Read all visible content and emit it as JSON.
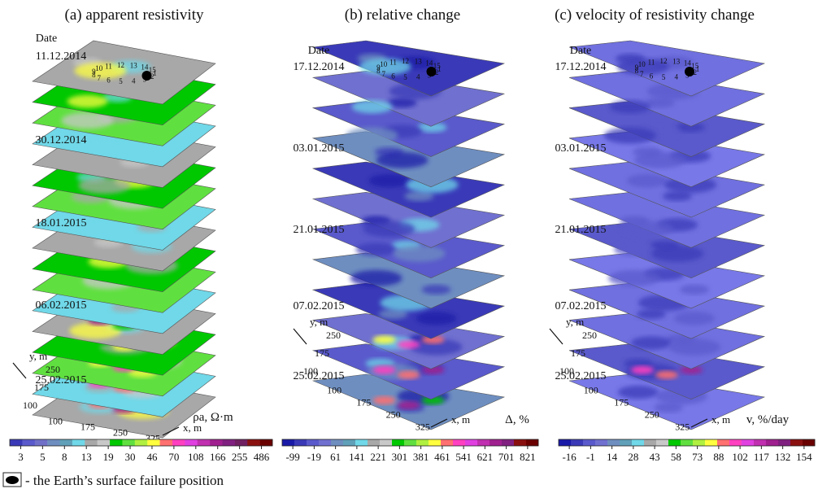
{
  "chart_data": [
    {
      "type": "heatmap",
      "title": "(a) apparent resistivity",
      "date_header": "Date",
      "dates": [
        "11.12.2014",
        "30.12.2014",
        "18.01.2015",
        "06.02.2015",
        "25.02.2015"
      ],
      "x_axis": {
        "label": "x, m",
        "ticks": [
          100,
          175,
          250,
          325
        ]
      },
      "y_axis": {
        "label": "y, m",
        "ticks": [
          100,
          175,
          250
        ]
      },
      "electrode_labels": [
        "1",
        "2",
        "3",
        "4",
        "5",
        "6",
        "7",
        "8",
        "9",
        "10",
        "11",
        "12",
        "13",
        "14",
        "15"
      ],
      "slice_count": 17,
      "colorbar": {
        "unit": "ρa, Ω·m",
        "ticks": [
          "3",
          "5",
          "8",
          "13",
          "19",
          "30",
          "46",
          "70",
          "108",
          "166",
          "255",
          "486"
        ],
        "colors": [
          "#3a3ab8",
          "#5a5acc",
          "#7070c8",
          "#6e8ec0",
          "#60a0b8",
          "#70d8e8",
          "#a8a8a8",
          "#c8c8c8",
          "#00c800",
          "#60e040",
          "#b0f040",
          "#ffff40",
          "#ff7070",
          "#ff40c0",
          "#e040e0",
          "#c030b0",
          "#a02090",
          "#802080",
          "#702060",
          "#8a1010",
          "#6a0000"
        ]
      }
    },
    {
      "type": "heatmap",
      "title": "(b) relative change",
      "date_header": "Date",
      "dates": [
        "17.12.2014",
        "03.01.2015",
        "21.01.2015",
        "07.02.2015",
        "25.02.2015"
      ],
      "x_axis": {
        "label": "x, m",
        "ticks": [
          100,
          175,
          250,
          325
        ]
      },
      "y_axis": {
        "label": "y, m",
        "ticks": [
          100,
          175,
          250
        ]
      },
      "electrode_labels": [
        "1",
        "2",
        "3",
        "4",
        "5",
        "6",
        "7",
        "8",
        "9",
        "10",
        "11",
        "12",
        "13",
        "14",
        "15"
      ],
      "slice_count": 12,
      "colorbar": {
        "unit": "Δ, %",
        "ticks": [
          "-99",
          "-19",
          "61",
          "141",
          "221",
          "301",
          "381",
          "461",
          "541",
          "621",
          "701",
          "821"
        ],
        "colors": [
          "#1a1aa8",
          "#3a3ab8",
          "#5a5acc",
          "#7070d0",
          "#6e8ec0",
          "#60a0b8",
          "#70d8e8",
          "#a8a8a8",
          "#c8c8c8",
          "#00c800",
          "#60e040",
          "#b0f040",
          "#ffff40",
          "#ff7070",
          "#ff40c0",
          "#e040e0",
          "#c030b0",
          "#a02090",
          "#802080",
          "#8a1010",
          "#6a0000"
        ]
      }
    },
    {
      "type": "heatmap",
      "title": "(c) velocity of resistivity change",
      "date_header": "Date",
      "dates": [
        "17.12.2014",
        "03.01.2015",
        "21.01.2015",
        "07.02.2015",
        "25.02.2015"
      ],
      "x_axis": {
        "label": "x, m",
        "ticks": [
          100,
          175,
          250,
          325
        ]
      },
      "y_axis": {
        "label": "y, m",
        "ticks": [
          100,
          175,
          250
        ]
      },
      "electrode_labels": [
        "1",
        "2",
        "3",
        "4",
        "5",
        "6",
        "7",
        "8",
        "9",
        "10",
        "11",
        "12",
        "13",
        "14",
        "15"
      ],
      "slice_count": 12,
      "colorbar": {
        "unit": "v, %/day",
        "ticks": [
          "-16",
          "-1",
          "14",
          "28",
          "43",
          "58",
          "73",
          "88",
          "102",
          "117",
          "132",
          "154"
        ],
        "colors": [
          "#1a1aa8",
          "#3a3ab8",
          "#5a5acc",
          "#7070d0",
          "#6e8ec0",
          "#60a0b8",
          "#70d8e8",
          "#a8a8a8",
          "#c8c8c8",
          "#00c800",
          "#60e040",
          "#b0f040",
          "#ffff40",
          "#ff7070",
          "#ff40c0",
          "#e040e0",
          "#c030b0",
          "#a02090",
          "#802080",
          "#8a1010",
          "#6a0000"
        ]
      }
    }
  ],
  "footnote": "- the Earth’s surface failure position"
}
